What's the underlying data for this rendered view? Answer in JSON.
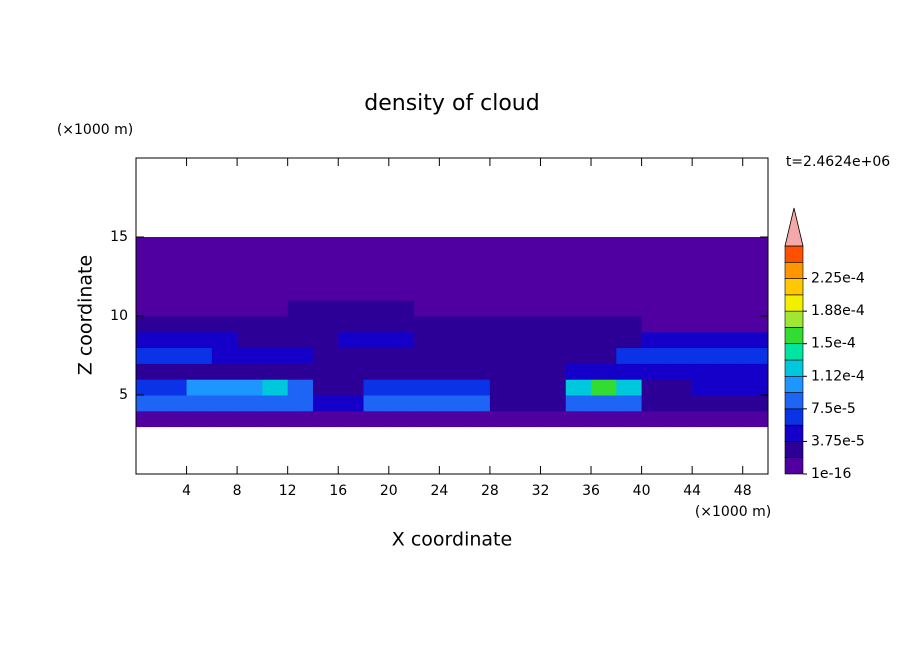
{
  "chart_data": {
    "type": "contour",
    "title": "density of cloud",
    "xlabel": "X coordinate",
    "ylabel": "Z coordinate",
    "x_unit": "(×1000 m)",
    "y_unit": "(×1000 m)",
    "time_label": "t=2.4624e+06",
    "xlim": [
      0,
      50
    ],
    "ylim": [
      0,
      20
    ],
    "xticks": [
      4,
      8,
      12,
      16,
      20,
      24,
      28,
      32,
      36,
      40,
      44,
      48
    ],
    "yticks": [
      5,
      10,
      15
    ],
    "x_centers": [
      1,
      3,
      5,
      7,
      9,
      11,
      13,
      15,
      17,
      19,
      21,
      23,
      25,
      27,
      29,
      31,
      33,
      35,
      37,
      39,
      41,
      43,
      45,
      47,
      49
    ],
    "z_centers": [
      3.5,
      4.5,
      5.5,
      6.5,
      7.5,
      8.5,
      9.5,
      10.5,
      11.5,
      12.5,
      13.5,
      14.5
    ],
    "values": [
      [
        1e-06,
        1e-06,
        1e-06,
        1e-06,
        1e-06,
        1e-06,
        1e-06,
        1e-06,
        1e-06,
        1e-06,
        1e-06,
        1e-06,
        1e-06,
        1e-06,
        1e-06,
        1e-06,
        1e-06,
        1e-06,
        1e-06,
        1e-06,
        1e-06,
        1e-06,
        1e-06,
        1e-06,
        1e-06
      ],
      [
        8e-05,
        8e-05,
        8e-05,
        8e-05,
        8e-05,
        8e-05,
        8e-05,
        4e-05,
        4e-05,
        8e-05,
        8e-05,
        8e-05,
        8e-05,
        8e-05,
        3e-05,
        3e-05,
        3e-05,
        9e-05,
        9e-05,
        9e-05,
        3e-05,
        3e-05,
        3e-05,
        3e-05,
        3e-05
      ],
      [
        6e-05,
        6e-05,
        0.0001,
        0.0001,
        0.0001,
        0.00013,
        9e-05,
        3e-05,
        3e-05,
        7e-05,
        7e-05,
        7e-05,
        7e-05,
        7e-05,
        2e-05,
        2e-05,
        2e-05,
        0.00013,
        0.00016,
        0.00012,
        3e-05,
        3e-05,
        4e-05,
        4e-05,
        4e-05
      ],
      [
        3e-05,
        3e-05,
        2e-05,
        2e-05,
        2e-05,
        2e-05,
        2e-05,
        2e-05,
        2e-05,
        2e-05,
        2e-05,
        2e-05,
        2e-05,
        2e-05,
        2e-05,
        2e-05,
        2e-05,
        5e-05,
        5e-05,
        5e-05,
        4e-05,
        4e-05,
        4e-05,
        4e-05,
        4e-05
      ],
      [
        6e-05,
        6e-05,
        6e-05,
        4e-05,
        4e-05,
        4e-05,
        4e-05,
        2e-05,
        2e-05,
        2e-05,
        2e-05,
        2e-05,
        2e-05,
        2e-05,
        2e-05,
        2e-05,
        2e-05,
        3e-05,
        3e-05,
        6e-05,
        6e-05,
        6e-05,
        6e-05,
        6e-05,
        6e-05
      ],
      [
        4e-05,
        4e-05,
        4e-05,
        4e-05,
        3e-05,
        3e-05,
        3e-05,
        3e-05,
        5e-05,
        5e-05,
        5e-05,
        2e-05,
        2e-05,
        2e-05,
        2e-05,
        2e-05,
        2e-05,
        2e-05,
        2e-05,
        2e-05,
        4e-05,
        4e-05,
        4e-05,
        4e-05,
        4e-05
      ],
      [
        2e-05,
        2e-05,
        2e-05,
        2e-05,
        3e-05,
        3e-05,
        3e-05,
        3e-05,
        3e-05,
        3e-05,
        3e-05,
        2e-05,
        2e-05,
        2e-05,
        2e-05,
        2e-05,
        2e-05,
        2e-05,
        2e-05,
        2e-05,
        1e-06,
        1e-06,
        1e-06,
        1e-06,
        1e-06
      ],
      [
        1e-06,
        1e-06,
        1e-06,
        1e-06,
        1e-06,
        1e-06,
        3e-05,
        3e-05,
        3e-05,
        3e-05,
        3e-05,
        1e-06,
        1e-06,
        1e-06,
        1e-06,
        1e-06,
        1e-06,
        1e-06,
        1e-06,
        1e-06,
        1e-06,
        1e-06,
        1e-06,
        1e-06,
        1e-06
      ],
      [
        1e-06,
        1e-06,
        1e-06,
        1e-06,
        1e-06,
        1e-06,
        1e-06,
        1e-06,
        1e-06,
        1e-06,
        1e-06,
        1e-06,
        1e-06,
        1e-06,
        1e-06,
        1e-06,
        1e-06,
        1e-06,
        1e-06,
        1e-06,
        1e-06,
        1e-06,
        1e-06,
        1e-06,
        1e-06
      ],
      [
        1e-06,
        1e-06,
        1e-06,
        1e-06,
        1e-06,
        1e-06,
        1e-06,
        1e-06,
        1e-06,
        1e-06,
        1e-06,
        1e-06,
        1e-06,
        1e-06,
        1e-06,
        1e-06,
        1e-06,
        1e-06,
        1e-06,
        1e-06,
        1e-06,
        1e-06,
        1e-06,
        1e-06,
        1e-06
      ],
      [
        1e-06,
        1e-06,
        1e-06,
        1e-06,
        1e-06,
        1e-06,
        1e-06,
        1e-06,
        1e-06,
        1e-06,
        1e-06,
        1e-06,
        1e-06,
        1e-06,
        1e-06,
        1e-06,
        1e-06,
        1e-06,
        1e-06,
        1e-06,
        1e-06,
        1e-06,
        1e-06,
        1e-06,
        1e-06
      ],
      [
        1e-06,
        1e-06,
        1e-06,
        1e-06,
        1e-06,
        1e-06,
        1e-06,
        1e-06,
        1e-06,
        1e-06,
        1e-06,
        1e-06,
        1e-06,
        1e-06,
        1e-06,
        1e-06,
        1e-06,
        1e-06,
        1e-06,
        1e-06,
        1e-06,
        1e-06,
        1e-06,
        1e-06,
        1e-06
      ]
    ],
    "levels": [
      1e-16,
      1.875e-05,
      3.75e-05,
      5.625e-05,
      7.5e-05,
      9.375e-05,
      0.0001125,
      0.00013125,
      0.00015,
      0.00016875,
      0.0001875,
      0.00020625,
      0.000225,
      0.00024375
    ],
    "level_colors": [
      "#5000a0",
      "#2c0096",
      "#1400c8",
      "#0a32e6",
      "#1e64f5",
      "#1e96ff",
      "#00c8dc",
      "#00e6a0",
      "#32dc32",
      "#a0e632",
      "#f0f000",
      "#ffc800",
      "#ff9600",
      "#ff5000"
    ],
    "over_color": "#f4a8a8",
    "colorbar_ticks": [
      {
        "value": 1e-16,
        "label": "1e-16"
      },
      {
        "value": 3.75e-05,
        "label": "3.75e-5"
      },
      {
        "value": 7.5e-05,
        "label": "7.5e-5"
      },
      {
        "value": 0.0001125,
        "label": "1.12e-4"
      },
      {
        "value": 0.00015,
        "label": "1.5e-4"
      },
      {
        "value": 0.0001875,
        "label": "1.88e-4"
      },
      {
        "value": 0.000225,
        "label": "2.25e-4"
      }
    ]
  }
}
